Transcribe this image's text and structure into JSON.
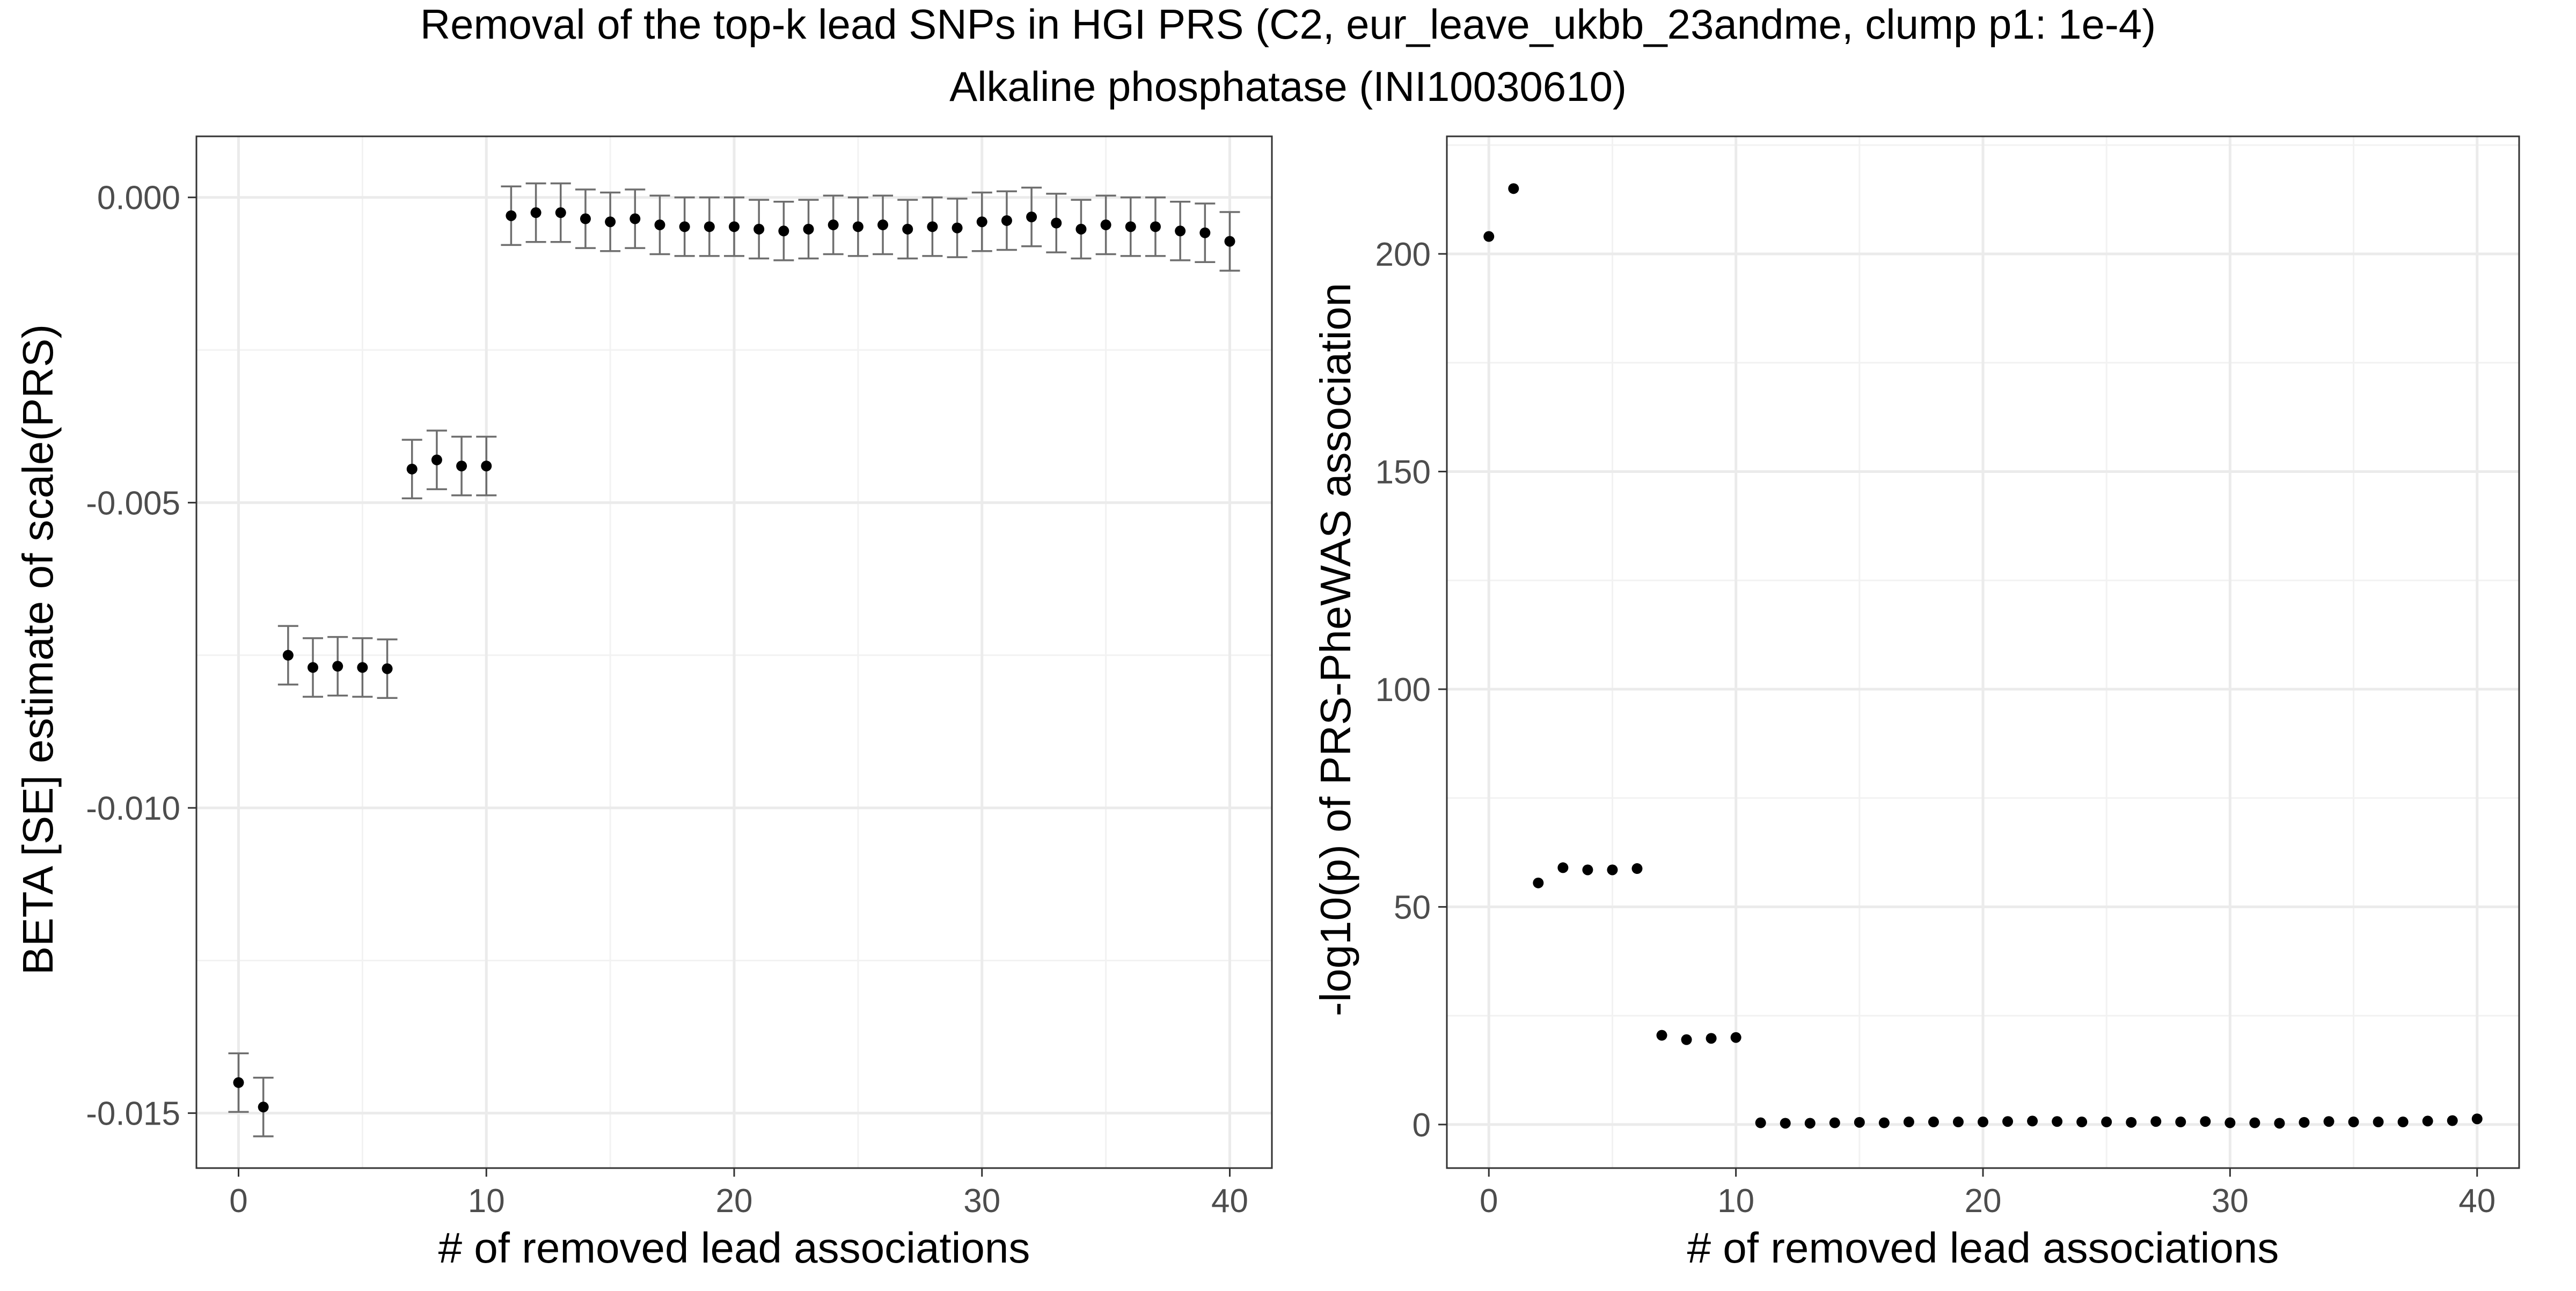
{
  "chart_data": {
    "title": "Removal of the top-k lead SNPs in HGI PRS (C2, eur_leave_ukbb_23andme, clump p1: 1e-4)",
    "subtitle": "Alkaline phosphatase (INI10030610)",
    "panels": [
      {
        "type": "scatter",
        "error_bars": true,
        "xlabel": "# of removed lead associations",
        "ylabel": "BETA [SE] estimate of scale(PRS)",
        "xlim": [
          -1.7,
          41.7
        ],
        "ylim": [
          -0.0159,
          0.001
        ],
        "xticks": [
          0,
          10,
          20,
          30,
          40
        ],
        "xtick_labels": [
          "0",
          "10",
          "20",
          "30",
          "40"
        ],
        "yticks": [
          -0.015,
          -0.01,
          -0.005,
          0.0
        ],
        "ytick_labels": [
          "-0.015",
          "-0.010",
          "-0.005",
          "0.000"
        ],
        "grid": true,
        "x": [
          0,
          1,
          2,
          3,
          4,
          5,
          6,
          7,
          8,
          9,
          10,
          11,
          12,
          13,
          14,
          15,
          16,
          17,
          18,
          19,
          20,
          21,
          22,
          23,
          24,
          25,
          26,
          27,
          28,
          29,
          30,
          31,
          32,
          33,
          34,
          35,
          36,
          37,
          38,
          39,
          40
        ],
        "y": [
          -0.0145,
          -0.0149,
          -0.0075,
          -0.0077,
          -0.00768,
          -0.0077,
          -0.00772,
          -0.00445,
          -0.0043,
          -0.0044,
          -0.0044,
          -0.0003,
          -0.00025,
          -0.00025,
          -0.00035,
          -0.0004,
          -0.00035,
          -0.00045,
          -0.00048,
          -0.00048,
          -0.00048,
          -0.00052,
          -0.00055,
          -0.00052,
          -0.00045,
          -0.00048,
          -0.00045,
          -0.00052,
          -0.00048,
          -0.0005,
          -0.0004,
          -0.00038,
          -0.00032,
          -0.00042,
          -0.00052,
          -0.00045,
          -0.00048,
          -0.00048,
          -0.00055,
          -0.00058,
          -0.00072
        ],
        "se": [
          0.00048,
          0.00048,
          0.00048,
          0.00048,
          0.00048,
          0.00048,
          0.00048,
          0.00048,
          0.00048,
          0.00048,
          0.00048,
          0.00048,
          0.00048,
          0.00048,
          0.00048,
          0.00048,
          0.00048,
          0.00048,
          0.00048,
          0.00048,
          0.00048,
          0.00048,
          0.00048,
          0.00048,
          0.00048,
          0.00048,
          0.00048,
          0.00048,
          0.00048,
          0.00048,
          0.00048,
          0.00048,
          0.00048,
          0.00048,
          0.00048,
          0.00048,
          0.00048,
          0.00048,
          0.00048,
          0.00048,
          0.00048
        ]
      },
      {
        "type": "scatter",
        "error_bars": false,
        "xlabel": "# of removed lead associations",
        "ylabel": "-log10(p) of PRS-PheWAS association",
        "xlim": [
          -1.7,
          41.7
        ],
        "ylim": [
          -10,
          227
        ],
        "xticks": [
          0,
          10,
          20,
          30,
          40
        ],
        "xtick_labels": [
          "0",
          "10",
          "20",
          "30",
          "40"
        ],
        "yticks": [
          0,
          50,
          100,
          150,
          200
        ],
        "ytick_labels": [
          "0",
          "50",
          "100",
          "150",
          "200"
        ],
        "grid": true,
        "x": [
          0,
          1,
          2,
          3,
          4,
          5,
          6,
          7,
          8,
          9,
          10,
          11,
          12,
          13,
          14,
          15,
          16,
          17,
          18,
          19,
          20,
          21,
          22,
          23,
          24,
          25,
          26,
          27,
          28,
          29,
          30,
          31,
          32,
          33,
          34,
          35,
          36,
          37,
          38,
          39,
          40
        ],
        "y": [
          204,
          215,
          55.5,
          59,
          58.5,
          58.5,
          58.8,
          20.5,
          19.5,
          19.8,
          20,
          0.4,
          0.3,
          0.3,
          0.4,
          0.5,
          0.4,
          0.6,
          0.6,
          0.6,
          0.6,
          0.7,
          0.8,
          0.7,
          0.6,
          0.6,
          0.5,
          0.7,
          0.6,
          0.7,
          0.4,
          0.4,
          0.3,
          0.5,
          0.7,
          0.6,
          0.6,
          0.6,
          0.8,
          0.9,
          1.3
        ]
      }
    ]
  }
}
